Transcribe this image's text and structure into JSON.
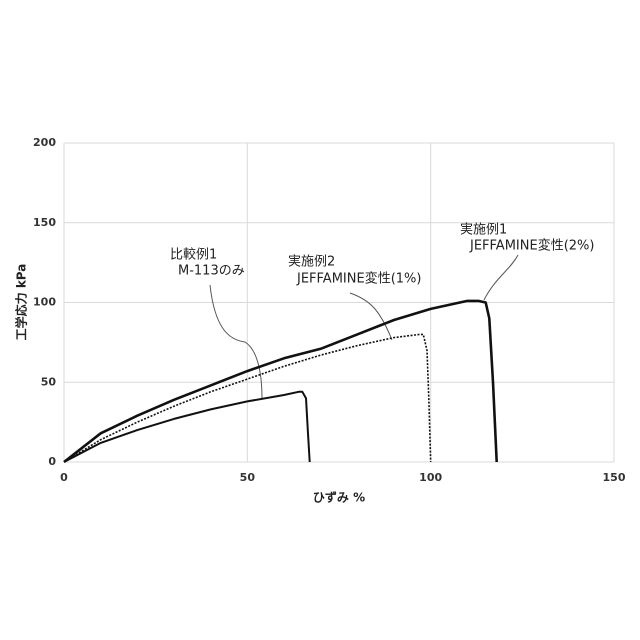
{
  "chart_data": {
    "type": "line",
    "x_label": "ひずみ %",
    "y_label": "工学応力 kPa",
    "xlim": [
      0,
      150
    ],
    "xticks": [
      0,
      50,
      100,
      150
    ],
    "ylim": [
      0,
      200
    ],
    "yticks": [
      0,
      50,
      100,
      150,
      200
    ],
    "grid": true,
    "series": [
      {
        "color": "#111111",
        "style": "solid",
        "x": [
          0,
          10,
          20,
          30,
          40,
          50,
          60,
          64,
          65,
          66,
          66.5,
          67
        ],
        "values": [
          0,
          12,
          20,
          27,
          33,
          38,
          42,
          44,
          44,
          40,
          20,
          0
        ]
      },
      {
        "color": "#111111",
        "style": "dotted",
        "x": [
          0,
          10,
          20,
          30,
          40,
          50,
          60,
          70,
          80,
          90,
          97,
          98,
          99,
          99.5,
          100
        ],
        "values": [
          0,
          14,
          25,
          35,
          44,
          52,
          60,
          67,
          73,
          78,
          80,
          80,
          70,
          40,
          0
        ]
      },
      {
        "color": "#111111",
        "style": "solid",
        "x": [
          0,
          10,
          20,
          30,
          40,
          50,
          60,
          70,
          80,
          90,
          100,
          110,
          113,
          115,
          116,
          117,
          118
        ],
        "values": [
          0,
          18,
          29,
          39,
          48,
          57,
          65,
          71,
          80,
          89,
          96,
          101,
          101,
          100,
          90,
          50,
          0
        ]
      }
    ],
    "annotations": [
      [
        "比較例1",
        "M-113のみ"
      ],
      [
        "実施例2",
        "JEFFAMINE変性(1%)"
      ],
      [
        "実施例1",
        "JEFFAMINE変性(2%)"
      ]
    ]
  }
}
